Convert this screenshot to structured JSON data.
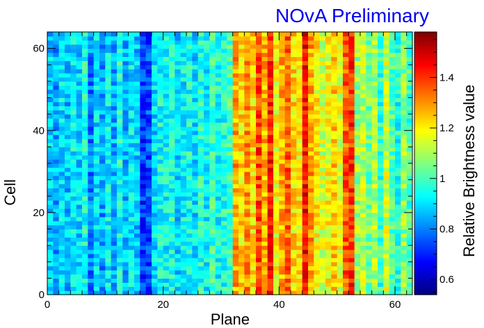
{
  "chart_data": {
    "type": "heatmap",
    "title": "",
    "annotation": "NOvA Preliminary",
    "xlabel": "Plane",
    "ylabel": "Cell",
    "colorbar_label": "Relative Brightness value",
    "xlim": [
      0,
      63
    ],
    "ylim": [
      0,
      64
    ],
    "x_ticks": [
      "0",
      "20",
      "40",
      "60"
    ],
    "y_ticks": [
      "0",
      "20",
      "40",
      "60"
    ],
    "colorbar_range": [
      0.54,
      1.58
    ],
    "colorbar_ticks": [
      "0.6",
      "0.8",
      "1",
      "1.2",
      "1.4"
    ],
    "n_planes": 63,
    "n_cells": 64,
    "colormap": "jet",
    "plane_mean_brightness": [
      0.88,
      0.84,
      0.9,
      0.86,
      0.92,
      0.89,
      0.95,
      0.8,
      0.9,
      0.83,
      0.92,
      0.85,
      0.96,
      0.86,
      0.91,
      0.88,
      0.72,
      0.74,
      0.9,
      0.95,
      0.93,
      0.96,
      0.89,
      0.92,
      0.95,
      0.9,
      0.97,
      0.93,
      0.99,
      0.94,
      0.96,
      1.0,
      1.28,
      1.22,
      1.3,
      1.22,
      1.38,
      1.26,
      1.42,
      1.18,
      1.27,
      1.35,
      1.22,
      1.2,
      1.45,
      1.28,
      1.2,
      1.15,
      1.18,
      1.24,
      1.16,
      1.36,
      1.4,
      1.08,
      1.12,
      1.04,
      1.1,
      0.98,
      1.14,
      1.02,
      0.96,
      1.08,
      1.0
    ],
    "grid": false,
    "legend": "colorbar at right"
  }
}
